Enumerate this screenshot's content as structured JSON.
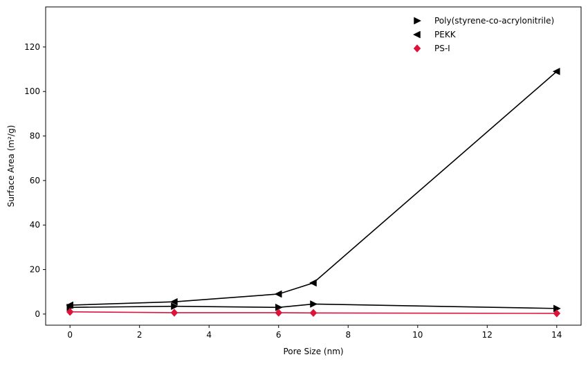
{
  "chart_data": {
    "type": "line",
    "title": "",
    "xlabel": "Pore Size (nm)",
    "ylabel": "Surface Area (m²/g)",
    "xlim": [
      -0.7,
      14.7
    ],
    "ylim": [
      -5,
      138
    ],
    "x_ticks": [
      0,
      2,
      4,
      6,
      8,
      10,
      12,
      14
    ],
    "y_ticks": [
      0,
      20,
      40,
      60,
      80,
      100,
      120
    ],
    "grid": false,
    "legend_position": "top-right",
    "series": [
      {
        "name": "Poly(styrene-co-acrylonitrile)",
        "marker": "triangle-right",
        "color": "#000000",
        "x": [
          0,
          3,
          6,
          7,
          14
        ],
        "y": [
          3.0,
          3.5,
          3.0,
          4.5,
          2.5
        ]
      },
      {
        "name": "PEKK",
        "marker": "triangle-left",
        "color": "#000000",
        "x": [
          0,
          3,
          6,
          7,
          14
        ],
        "y": [
          4.0,
          5.5,
          9.0,
          14.0,
          109.0
        ]
      },
      {
        "name": "PS-I",
        "marker": "diamond",
        "color": "#dc143c",
        "x": [
          0,
          3,
          6,
          7,
          14
        ],
        "y": [
          1.0,
          0.6,
          0.6,
          0.5,
          0.3
        ]
      }
    ]
  }
}
